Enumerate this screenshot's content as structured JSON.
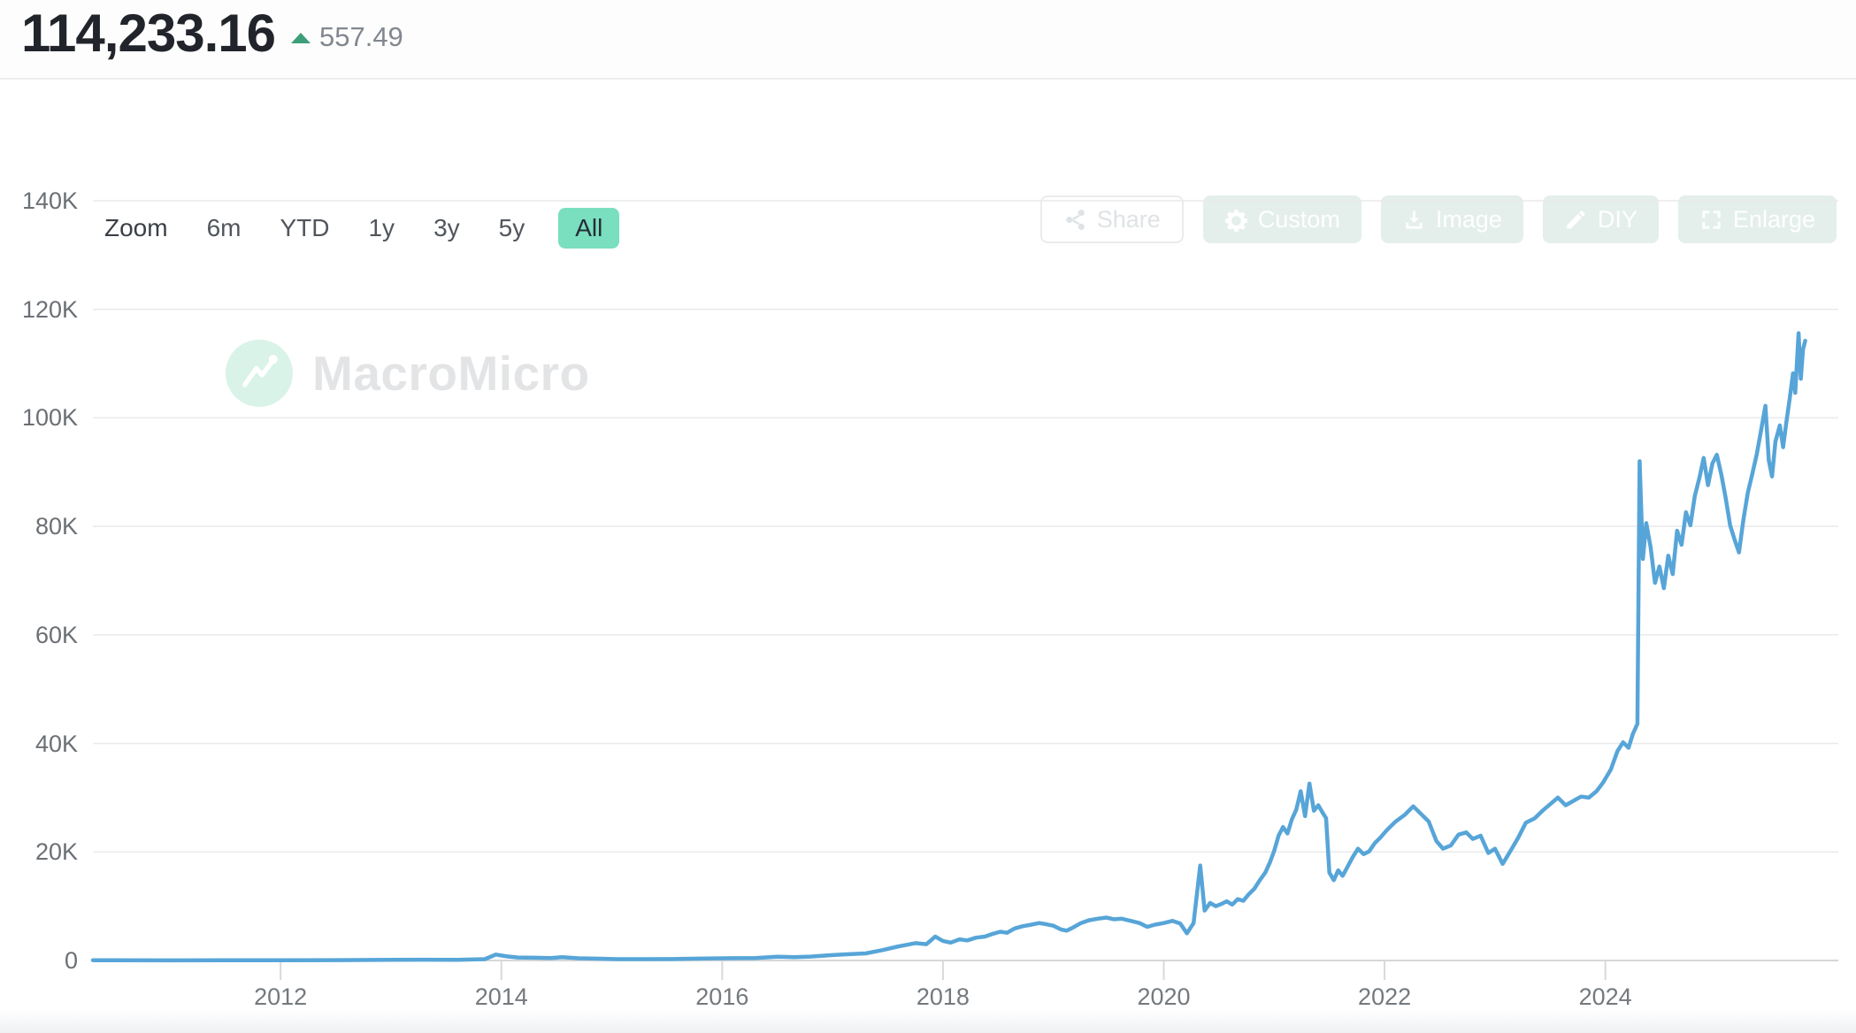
{
  "header": {
    "value": "114,233.16",
    "change": "557.49",
    "trend": "up",
    "trend_color": "#3e9e7a"
  },
  "toolbar": {
    "zoom_label": "Zoom",
    "ranges": [
      {
        "label": "6m",
        "active": false
      },
      {
        "label": "YTD",
        "active": false
      },
      {
        "label": "1y",
        "active": false
      },
      {
        "label": "3y",
        "active": false
      },
      {
        "label": "5y",
        "active": false
      },
      {
        "label": "All",
        "active": true
      }
    ],
    "active_chip_color": "#79dfbf"
  },
  "actions": [
    {
      "label": "Share",
      "icon": "share-icon",
      "variant": "outline"
    },
    {
      "label": "Custom",
      "icon": "gear-icon",
      "variant": "tinted"
    },
    {
      "label": "Image",
      "icon": "download-icon",
      "variant": "tinted"
    },
    {
      "label": "DIY",
      "icon": "pencil-icon",
      "variant": "tinted"
    },
    {
      "label": "Enlarge",
      "icon": "enlarge-icon",
      "variant": "tinted"
    }
  ],
  "watermark": {
    "text": "MacroMicro",
    "icon": "macromicro-logo-icon",
    "circle_color": "#d9f3e8"
  },
  "chart_data": {
    "type": "line",
    "title": "",
    "xlabel": "",
    "ylabel": "",
    "line_color": "#57a5d8",
    "grid": true,
    "legend_position": "none",
    "xlim": [
      2010.3,
      2026.11
    ],
    "ylim": [
      0,
      140
    ],
    "unit": "thousands",
    "yticks": [
      {
        "v": 0,
        "label": "0"
      },
      {
        "v": 20,
        "label": "20K"
      },
      {
        "v": 40,
        "label": "40K"
      },
      {
        "v": 60,
        "label": "60K"
      },
      {
        "v": 80,
        "label": "80K"
      },
      {
        "v": 100,
        "label": "100K"
      },
      {
        "v": 120,
        "label": "120K"
      },
      {
        "v": 140,
        "label": "140K"
      }
    ],
    "xticks": [
      {
        "v": 2012,
        "label": "2012"
      },
      {
        "v": 2014,
        "label": "2014"
      },
      {
        "v": 2016,
        "label": "2016"
      },
      {
        "v": 2018,
        "label": "2018"
      },
      {
        "v": 2020,
        "label": "2020"
      },
      {
        "v": 2022,
        "label": "2022"
      },
      {
        "v": 2024,
        "label": "2024"
      }
    ],
    "points": [
      [
        2010.3,
        0.05
      ],
      [
        2011.0,
        0.02
      ],
      [
        2011.5,
        0.03
      ],
      [
        2012.0,
        0.04
      ],
      [
        2012.5,
        0.06
      ],
      [
        2013.0,
        0.12
      ],
      [
        2013.3,
        0.15
      ],
      [
        2013.6,
        0.12
      ],
      [
        2013.85,
        0.25
      ],
      [
        2013.95,
        1.1
      ],
      [
        2014.05,
        0.75
      ],
      [
        2014.15,
        0.55
      ],
      [
        2014.3,
        0.5
      ],
      [
        2014.45,
        0.45
      ],
      [
        2014.55,
        0.6
      ],
      [
        2014.7,
        0.4
      ],
      [
        2014.9,
        0.33
      ],
      [
        2015.05,
        0.25
      ],
      [
        2015.3,
        0.25
      ],
      [
        2015.6,
        0.28
      ],
      [
        2015.85,
        0.38
      ],
      [
        2016.1,
        0.42
      ],
      [
        2016.3,
        0.45
      ],
      [
        2016.5,
        0.68
      ],
      [
        2016.65,
        0.62
      ],
      [
        2016.8,
        0.72
      ],
      [
        2017.0,
        1.0
      ],
      [
        2017.15,
        1.15
      ],
      [
        2017.3,
        1.3
      ],
      [
        2017.45,
        1.9
      ],
      [
        2017.6,
        2.6
      ],
      [
        2017.75,
        3.2
      ],
      [
        2017.85,
        3.0
      ],
      [
        2017.93,
        4.4
      ],
      [
        2018.0,
        3.6
      ],
      [
        2018.07,
        3.3
      ],
      [
        2018.15,
        3.9
      ],
      [
        2018.22,
        3.7
      ],
      [
        2018.3,
        4.2
      ],
      [
        2018.38,
        4.4
      ],
      [
        2018.45,
        4.9
      ],
      [
        2018.52,
        5.3
      ],
      [
        2018.58,
        5.1
      ],
      [
        2018.65,
        5.9
      ],
      [
        2018.72,
        6.3
      ],
      [
        2018.8,
        6.6
      ],
      [
        2018.87,
        6.9
      ],
      [
        2018.93,
        6.7
      ],
      [
        2019.0,
        6.4
      ],
      [
        2019.07,
        5.7
      ],
      [
        2019.12,
        5.5
      ],
      [
        2019.18,
        6.1
      ],
      [
        2019.25,
        6.9
      ],
      [
        2019.32,
        7.4
      ],
      [
        2019.4,
        7.7
      ],
      [
        2019.48,
        7.9
      ],
      [
        2019.55,
        7.6
      ],
      [
        2019.62,
        7.7
      ],
      [
        2019.7,
        7.3
      ],
      [
        2019.78,
        6.9
      ],
      [
        2019.85,
        6.2
      ],
      [
        2019.92,
        6.6
      ],
      [
        2020.0,
        6.9
      ],
      [
        2020.08,
        7.3
      ],
      [
        2020.15,
        6.8
      ],
      [
        2020.21,
        5.0
      ],
      [
        2020.27,
        6.9
      ],
      [
        2020.33,
        17.5
      ],
      [
        2020.37,
        9.2
      ],
      [
        2020.42,
        10.6
      ],
      [
        2020.47,
        10.0
      ],
      [
        2020.52,
        10.4
      ],
      [
        2020.57,
        10.9
      ],
      [
        2020.62,
        10.3
      ],
      [
        2020.67,
        11.3
      ],
      [
        2020.72,
        11.0
      ],
      [
        2020.77,
        12.2
      ],
      [
        2020.82,
        13.2
      ],
      [
        2020.87,
        14.8
      ],
      [
        2020.92,
        16.2
      ],
      [
        2020.96,
        18.0
      ],
      [
        2021.0,
        20.2
      ],
      [
        2021.04,
        23.0
      ],
      [
        2021.08,
        24.6
      ],
      [
        2021.12,
        23.4
      ],
      [
        2021.16,
        26.0
      ],
      [
        2021.2,
        27.8
      ],
      [
        2021.24,
        31.2
      ],
      [
        2021.28,
        26.6
      ],
      [
        2021.32,
        32.6
      ],
      [
        2021.36,
        27.6
      ],
      [
        2021.4,
        28.6
      ],
      [
        2021.44,
        27.2
      ],
      [
        2021.47,
        26.2
      ],
      [
        2021.5,
        16.2
      ],
      [
        2021.54,
        14.8
      ],
      [
        2021.58,
        16.6
      ],
      [
        2021.62,
        15.6
      ],
      [
        2021.66,
        17.1
      ],
      [
        2021.71,
        19.0
      ],
      [
        2021.76,
        20.6
      ],
      [
        2021.81,
        19.6
      ],
      [
        2021.86,
        20.1
      ],
      [
        2021.91,
        21.6
      ],
      [
        2021.96,
        22.6
      ],
      [
        2022.02,
        24.0
      ],
      [
        2022.1,
        25.6
      ],
      [
        2022.18,
        26.8
      ],
      [
        2022.26,
        28.4
      ],
      [
        2022.33,
        27.0
      ],
      [
        2022.4,
        25.6
      ],
      [
        2022.47,
        22.0
      ],
      [
        2022.53,
        20.6
      ],
      [
        2022.6,
        21.2
      ],
      [
        2022.67,
        23.2
      ],
      [
        2022.74,
        23.6
      ],
      [
        2022.8,
        22.4
      ],
      [
        2022.87,
        23.0
      ],
      [
        2022.94,
        19.8
      ],
      [
        2023.0,
        20.6
      ],
      [
        2023.07,
        17.8
      ],
      [
        2023.14,
        20.2
      ],
      [
        2023.21,
        22.6
      ],
      [
        2023.28,
        25.4
      ],
      [
        2023.36,
        26.2
      ],
      [
        2023.43,
        27.6
      ],
      [
        2023.5,
        28.8
      ],
      [
        2023.57,
        30.0
      ],
      [
        2023.64,
        28.6
      ],
      [
        2023.71,
        29.4
      ],
      [
        2023.78,
        30.2
      ],
      [
        2023.85,
        30.0
      ],
      [
        2023.92,
        31.2
      ],
      [
        2023.98,
        32.8
      ],
      [
        2024.05,
        35.2
      ],
      [
        2024.11,
        38.6
      ],
      [
        2024.16,
        40.2
      ],
      [
        2024.21,
        39.2
      ],
      [
        2024.25,
        41.8
      ],
      [
        2024.29,
        43.6
      ],
      [
        2024.31,
        92.0
      ],
      [
        2024.34,
        74.0
      ],
      [
        2024.37,
        80.6
      ],
      [
        2024.41,
        76.2
      ],
      [
        2024.45,
        69.6
      ],
      [
        2024.49,
        72.6
      ],
      [
        2024.53,
        68.6
      ],
      [
        2024.57,
        74.6
      ],
      [
        2024.61,
        71.2
      ],
      [
        2024.65,
        79.2
      ],
      [
        2024.69,
        76.6
      ],
      [
        2024.73,
        82.6
      ],
      [
        2024.77,
        80.2
      ],
      [
        2024.81,
        85.6
      ],
      [
        2024.85,
        88.8
      ],
      [
        2024.89,
        92.6
      ],
      [
        2024.93,
        87.6
      ],
      [
        2024.97,
        91.6
      ],
      [
        2025.01,
        93.2
      ],
      [
        2025.05,
        89.6
      ],
      [
        2025.09,
        85.2
      ],
      [
        2025.13,
        80.2
      ],
      [
        2025.17,
        77.6
      ],
      [
        2025.21,
        75.2
      ],
      [
        2025.25,
        81.2
      ],
      [
        2025.29,
        86.2
      ],
      [
        2025.33,
        89.6
      ],
      [
        2025.37,
        93.2
      ],
      [
        2025.41,
        97.6
      ],
      [
        2025.45,
        102.2
      ],
      [
        2025.48,
        92.2
      ],
      [
        2025.51,
        89.2
      ],
      [
        2025.54,
        95.6
      ],
      [
        2025.58,
        98.6
      ],
      [
        2025.61,
        94.6
      ],
      [
        2025.64,
        99.2
      ],
      [
        2025.67,
        103.6
      ],
      [
        2025.7,
        108.2
      ],
      [
        2025.72,
        104.6
      ],
      [
        2025.75,
        115.6
      ],
      [
        2025.77,
        107.2
      ],
      [
        2025.79,
        112.6
      ],
      [
        2025.81,
        114.2
      ]
    ]
  }
}
